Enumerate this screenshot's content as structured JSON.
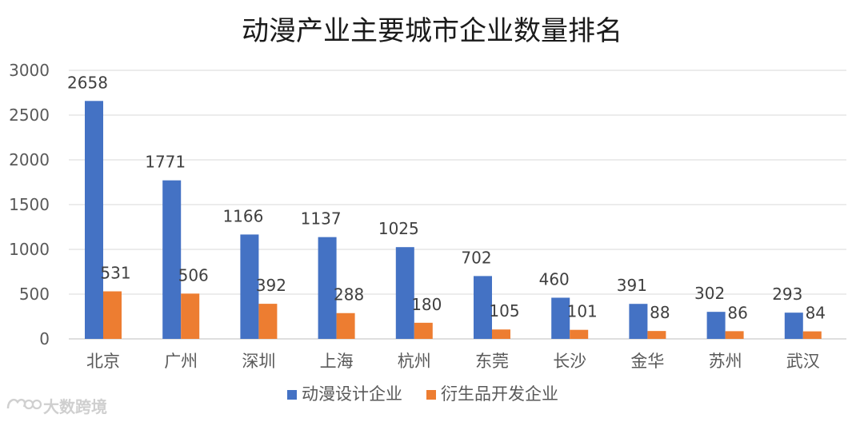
{
  "chart_data": {
    "type": "bar",
    "title": "动漫产业主要城市企业数量排名",
    "categories": [
      "北京",
      "广州",
      "深圳",
      "上海",
      "杭州",
      "东莞",
      "长沙",
      "金华",
      "苏州",
      "武汉"
    ],
    "series": [
      {
        "name": "动漫设计企业",
        "color": "#4472C4",
        "values": [
          2658,
          1771,
          1166,
          1137,
          1025,
          702,
          460,
          391,
          302,
          293
        ]
      },
      {
        "name": "衍生品开发企业",
        "color": "#ED7D31",
        "values": [
          531,
          506,
          392,
          288,
          180,
          105,
          101,
          88,
          86,
          84
        ]
      }
    ],
    "ylim": [
      0,
      3000
    ],
    "yticks": [
      0,
      500,
      1000,
      1500,
      2000,
      2500,
      3000
    ],
    "grid": true,
    "legend": "bottom"
  },
  "watermark": {
    "text": "大数跨境",
    "icon": "brand-logo-icon"
  }
}
